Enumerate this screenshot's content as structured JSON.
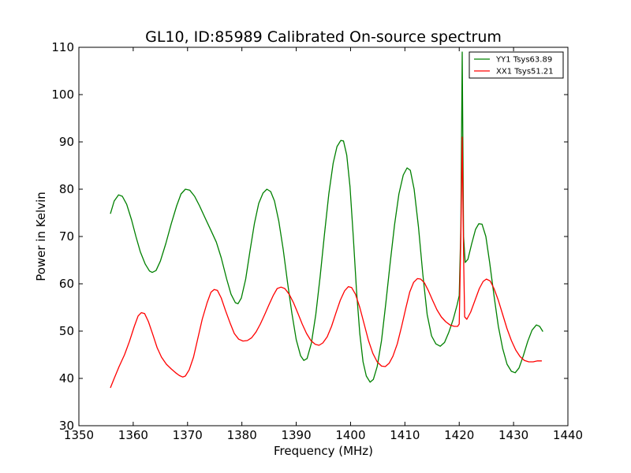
{
  "chart_data": {
    "type": "line",
    "title": "GL10, ID:85989 Calibrated On-source spectrum",
    "xlabel": "Frequency (MHz)",
    "ylabel": "Power in Kelvin",
    "xlim": [
      1350,
      1440
    ],
    "ylim": [
      30,
      110
    ],
    "xticks": [
      1350,
      1360,
      1370,
      1380,
      1390,
      1400,
      1410,
      1420,
      1430,
      1440
    ],
    "yticks": [
      30,
      40,
      50,
      60,
      70,
      80,
      90,
      100,
      110
    ],
    "grid": false,
    "legend_position": "top-right",
    "series": [
      {
        "name": "YY1 Tsys63.89",
        "color": "#008000",
        "points": [
          [
            1355.8,
            74.8
          ],
          [
            1356.5,
            77.5
          ],
          [
            1357.3,
            78.8
          ],
          [
            1358.0,
            78.5
          ],
          [
            1358.8,
            76.8
          ],
          [
            1359.7,
            73.5
          ],
          [
            1360.5,
            70.0
          ],
          [
            1361.3,
            66.8
          ],
          [
            1362.2,
            64.2
          ],
          [
            1363.0,
            62.7
          ],
          [
            1363.5,
            62.4
          ],
          [
            1364.2,
            62.8
          ],
          [
            1365.0,
            64.8
          ],
          [
            1366.0,
            68.5
          ],
          [
            1367.0,
            72.7
          ],
          [
            1368.0,
            76.5
          ],
          [
            1368.8,
            79.0
          ],
          [
            1369.6,
            80.0
          ],
          [
            1370.4,
            79.8
          ],
          [
            1371.3,
            78.5
          ],
          [
            1372.2,
            76.5
          ],
          [
            1373.2,
            74.0
          ],
          [
            1374.3,
            71.3
          ],
          [
            1375.3,
            68.8
          ],
          [
            1376.2,
            65.5
          ],
          [
            1377.2,
            61.0
          ],
          [
            1378.0,
            57.8
          ],
          [
            1378.8,
            56.0
          ],
          [
            1379.3,
            55.8
          ],
          [
            1379.9,
            57.0
          ],
          [
            1380.7,
            61.0
          ],
          [
            1381.5,
            67.0
          ],
          [
            1382.3,
            72.7
          ],
          [
            1383.1,
            77.0
          ],
          [
            1383.9,
            79.2
          ],
          [
            1384.6,
            80.0
          ],
          [
            1385.3,
            79.5
          ],
          [
            1386.0,
            77.5
          ],
          [
            1386.8,
            73.2
          ],
          [
            1387.6,
            67.3
          ],
          [
            1388.4,
            60.3
          ],
          [
            1389.2,
            53.8
          ],
          [
            1390.0,
            48.2
          ],
          [
            1390.8,
            44.8
          ],
          [
            1391.4,
            43.8
          ],
          [
            1392.0,
            44.2
          ],
          [
            1392.8,
            47.5
          ],
          [
            1393.6,
            53.5
          ],
          [
            1394.4,
            61.5
          ],
          [
            1395.2,
            70.5
          ],
          [
            1396.0,
            79.0
          ],
          [
            1396.8,
            85.5
          ],
          [
            1397.5,
            89.0
          ],
          [
            1398.2,
            90.3
          ],
          [
            1398.7,
            90.2
          ],
          [
            1399.3,
            87.2
          ],
          [
            1399.9,
            80.5
          ],
          [
            1400.5,
            70.0
          ],
          [
            1401.1,
            58.5
          ],
          [
            1401.7,
            49.5
          ],
          [
            1402.3,
            43.5
          ],
          [
            1402.9,
            40.5
          ],
          [
            1403.6,
            39.2
          ],
          [
            1404.2,
            39.8
          ],
          [
            1404.9,
            42.5
          ],
          [
            1405.7,
            48.0
          ],
          [
            1406.5,
            56.0
          ],
          [
            1407.3,
            64.5
          ],
          [
            1408.1,
            72.5
          ],
          [
            1408.9,
            79.0
          ],
          [
            1409.7,
            83.0
          ],
          [
            1410.4,
            84.5
          ],
          [
            1411.0,
            84.0
          ],
          [
            1411.7,
            80.0
          ],
          [
            1412.5,
            72.0
          ],
          [
            1413.3,
            62.0
          ],
          [
            1414.1,
            53.5
          ],
          [
            1414.9,
            49.0
          ],
          [
            1415.7,
            47.3
          ],
          [
            1416.5,
            46.8
          ],
          [
            1417.3,
            47.6
          ],
          [
            1418.1,
            49.8
          ],
          [
            1418.9,
            52.5
          ],
          [
            1419.6,
            55.5
          ],
          [
            1420.0,
            57.5
          ],
          [
            1420.3,
            72.0
          ],
          [
            1420.55,
            109.0
          ],
          [
            1420.8,
            70.0
          ],
          [
            1421.1,
            64.5
          ],
          [
            1421.6,
            65.2
          ],
          [
            1422.3,
            68.5
          ],
          [
            1423.0,
            71.5
          ],
          [
            1423.6,
            72.7
          ],
          [
            1424.2,
            72.6
          ],
          [
            1424.9,
            70.0
          ],
          [
            1425.6,
            64.5
          ],
          [
            1426.4,
            57.5
          ],
          [
            1427.2,
            51.0
          ],
          [
            1428.0,
            46.3
          ],
          [
            1428.8,
            43.0
          ],
          [
            1429.6,
            41.5
          ],
          [
            1430.3,
            41.2
          ],
          [
            1431.0,
            42.2
          ],
          [
            1431.8,
            44.8
          ],
          [
            1432.6,
            47.8
          ],
          [
            1433.4,
            50.2
          ],
          [
            1434.2,
            51.3
          ],
          [
            1434.8,
            51.0
          ],
          [
            1435.4,
            49.9
          ]
        ]
      },
      {
        "name": "XX1 Tsys51.21",
        "color": "#ff0000",
        "points": [
          [
            1355.8,
            38.0
          ],
          [
            1356.5,
            40.0
          ],
          [
            1357.4,
            42.5
          ],
          [
            1358.4,
            45.0
          ],
          [
            1359.3,
            47.8
          ],
          [
            1360.2,
            51.0
          ],
          [
            1360.9,
            53.2
          ],
          [
            1361.5,
            53.9
          ],
          [
            1362.1,
            53.7
          ],
          [
            1362.8,
            52.0
          ],
          [
            1363.6,
            49.3
          ],
          [
            1364.4,
            46.5
          ],
          [
            1365.2,
            44.5
          ],
          [
            1366.1,
            43.0
          ],
          [
            1367.0,
            42.0
          ],
          [
            1367.8,
            41.2
          ],
          [
            1368.5,
            40.6
          ],
          [
            1369.1,
            40.3
          ],
          [
            1369.6,
            40.5
          ],
          [
            1370.3,
            41.8
          ],
          [
            1371.1,
            44.5
          ],
          [
            1371.9,
            48.5
          ],
          [
            1372.7,
            52.5
          ],
          [
            1373.6,
            56.0
          ],
          [
            1374.3,
            58.2
          ],
          [
            1374.9,
            58.8
          ],
          [
            1375.5,
            58.6
          ],
          [
            1376.2,
            57.0
          ],
          [
            1377.0,
            54.3
          ],
          [
            1377.8,
            51.8
          ],
          [
            1378.6,
            49.5
          ],
          [
            1379.4,
            48.3
          ],
          [
            1380.2,
            47.9
          ],
          [
            1381.0,
            48.0
          ],
          [
            1381.8,
            48.6
          ],
          [
            1382.6,
            49.8
          ],
          [
            1383.4,
            51.5
          ],
          [
            1384.2,
            53.5
          ],
          [
            1385.0,
            55.6
          ],
          [
            1385.8,
            57.6
          ],
          [
            1386.5,
            59.0
          ],
          [
            1387.2,
            59.3
          ],
          [
            1387.9,
            59.0
          ],
          [
            1388.7,
            57.8
          ],
          [
            1389.5,
            56.0
          ],
          [
            1390.3,
            53.8
          ],
          [
            1391.1,
            51.5
          ],
          [
            1391.9,
            49.5
          ],
          [
            1392.7,
            48.0
          ],
          [
            1393.5,
            47.2
          ],
          [
            1394.2,
            47.0
          ],
          [
            1394.9,
            47.5
          ],
          [
            1395.7,
            48.8
          ],
          [
            1396.5,
            51.0
          ],
          [
            1397.3,
            53.8
          ],
          [
            1398.1,
            56.5
          ],
          [
            1398.9,
            58.5
          ],
          [
            1399.6,
            59.4
          ],
          [
            1400.2,
            59.2
          ],
          [
            1400.9,
            57.8
          ],
          [
            1401.7,
            55.0
          ],
          [
            1402.5,
            51.5
          ],
          [
            1403.3,
            48.0
          ],
          [
            1404.1,
            45.3
          ],
          [
            1404.9,
            43.5
          ],
          [
            1405.7,
            42.6
          ],
          [
            1406.4,
            42.5
          ],
          [
            1407.1,
            43.2
          ],
          [
            1407.8,
            44.7
          ],
          [
            1408.6,
            47.3
          ],
          [
            1409.4,
            51.0
          ],
          [
            1410.2,
            55.0
          ],
          [
            1410.9,
            58.3
          ],
          [
            1411.6,
            60.3
          ],
          [
            1412.3,
            61.1
          ],
          [
            1412.9,
            61.0
          ],
          [
            1413.6,
            60.2
          ],
          [
            1414.3,
            58.6
          ],
          [
            1415.1,
            56.5
          ],
          [
            1415.9,
            54.5
          ],
          [
            1416.7,
            53.0
          ],
          [
            1417.5,
            52.0
          ],
          [
            1418.3,
            51.3
          ],
          [
            1419.1,
            51.0
          ],
          [
            1419.7,
            51.0
          ],
          [
            1420.0,
            51.5
          ],
          [
            1420.3,
            70.0
          ],
          [
            1420.55,
            91.0
          ],
          [
            1420.8,
            66.0
          ],
          [
            1421.0,
            53.0
          ],
          [
            1421.4,
            52.5
          ],
          [
            1422.1,
            54.0
          ],
          [
            1422.9,
            56.5
          ],
          [
            1423.7,
            59.0
          ],
          [
            1424.4,
            60.5
          ],
          [
            1425.0,
            61.0
          ],
          [
            1425.7,
            60.6
          ],
          [
            1426.4,
            59.0
          ],
          [
            1427.2,
            56.5
          ],
          [
            1428.0,
            53.5
          ],
          [
            1428.8,
            50.5
          ],
          [
            1429.6,
            48.0
          ],
          [
            1430.4,
            46.0
          ],
          [
            1431.2,
            44.6
          ],
          [
            1432.0,
            43.8
          ],
          [
            1432.8,
            43.5
          ],
          [
            1433.6,
            43.5
          ],
          [
            1434.4,
            43.7
          ],
          [
            1435.2,
            43.7
          ]
        ]
      }
    ]
  }
}
